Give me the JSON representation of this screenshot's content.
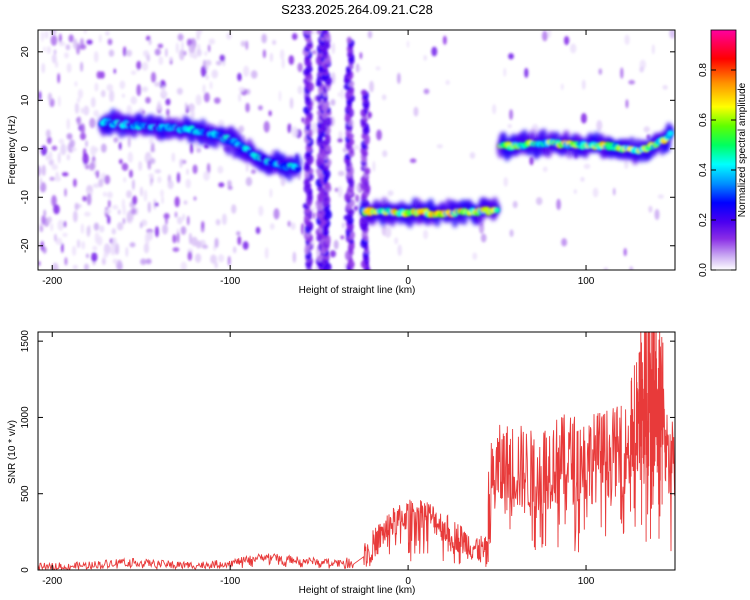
{
  "title": "S233.2025.264.09.21.C28",
  "chart_data": [
    {
      "type": "heatmap",
      "xlabel": "Height of straight line (km)",
      "ylabel": "Frequency (Hz)",
      "xlim": [
        -208,
        150
      ],
      "ylim": [
        -25,
        24.5
      ],
      "xticks": [
        -200,
        -100,
        0,
        100
      ],
      "yticks": [
        -20,
        -10,
        0,
        10,
        20
      ],
      "grid": false,
      "colorbar": {
        "label": "Normalized spectral amplitude",
        "range": [
          0,
          0.96
        ],
        "ticks": [
          "0.0",
          "0.2",
          "0.4",
          "0.6",
          "0.8"
        ],
        "colors": [
          "#ffffff",
          "#c9a8f2",
          "#8a2ee6",
          "#4b00f0",
          "#0000ff",
          "#0090ff",
          "#00ffff",
          "#00ff60",
          "#60ff00",
          "#ffff00",
          "#ff9000",
          "#ff0000",
          "#ff00a0"
        ]
      },
      "ridges": [
        {
          "x": [
            -172,
            -160,
            -150,
            -140,
            -130,
            -120,
            -110,
            -100,
            -90,
            -80,
            -70,
            -62
          ],
          "y": [
            5.5,
            5,
            4.8,
            4.5,
            4.2,
            3.8,
            3,
            1.8,
            -0.5,
            -2.5,
            -3.5,
            -4
          ],
          "strength": 0.45
        },
        {
          "x": [
            -25,
            -15,
            -5,
            5,
            15,
            25,
            35,
            45,
            50
          ],
          "y": [
            -13,
            -13,
            -13.2,
            -13,
            -13.4,
            -13.2,
            -13,
            -12.8,
            -12.6
          ],
          "strength": 0.75
        },
        {
          "x": [
            52,
            60,
            70,
            80,
            90,
            100,
            110,
            120,
            130,
            140,
            148
          ],
          "y": [
            0.5,
            0.6,
            1,
            1.2,
            0.8,
            0.6,
            0.6,
            0.2,
            -0.5,
            1,
            3
          ],
          "strength": 0.7
        }
      ],
      "vertical_streaks": [
        {
          "x": -56,
          "y_range": [
            -25,
            24.5
          ]
        },
        {
          "x": -49,
          "y_range": [
            -25,
            24.5
          ]
        },
        {
          "x": -46,
          "y_range": [
            -25,
            24.5
          ]
        },
        {
          "x": -33,
          "y_range": [
            -25,
            22.5
          ]
        },
        {
          "x": -24,
          "y_range": [
            -25,
            12
          ]
        }
      ]
    },
    {
      "type": "line",
      "xlabel": "Height of straight line (km)",
      "ylabel": "SNR (10 * v/v)",
      "xlim": [
        -208,
        150
      ],
      "ylim": [
        0,
        1560
      ],
      "xticks": [
        -200,
        -100,
        0,
        100
      ],
      "yticks": [
        0,
        500,
        1000,
        1500
      ],
      "grid": false,
      "color": "#e83a3a",
      "segments": [
        {
          "x": [
            -208,
            -180,
            -160,
            -140,
            -120,
            -100,
            -80,
            -60,
            -40,
            -30
          ],
          "base": [
            20,
            30,
            55,
            40,
            30,
            45,
            90,
            60,
            50,
            60
          ],
          "noise": 25,
          "density": 2.5
        },
        {
          "x": [
            -25,
            -20,
            -15,
            -10,
            -5,
            0,
            5,
            10,
            15,
            20,
            25,
            30,
            35,
            40,
            45
          ],
          "base": [
            90,
            160,
            230,
            300,
            330,
            360,
            380,
            370,
            330,
            280,
            240,
            200,
            160,
            140,
            110
          ],
          "noise": 100,
          "density": 4
        },
        {
          "x": [
            45,
            50,
            60,
            70,
            80,
            90,
            100,
            110,
            120,
            130,
            140,
            150
          ],
          "base": [
            500,
            650,
            680,
            620,
            700,
            730,
            720,
            760,
            780,
            820,
            840,
            760
          ],
          "noise": 300,
          "density": 4
        },
        {
          "x": [
            125,
            130,
            135,
            140,
            145
          ],
          "base": [
            900,
            1200,
            1560,
            1300,
            1100
          ],
          "noise": 350,
          "density": 5
        }
      ]
    }
  ]
}
